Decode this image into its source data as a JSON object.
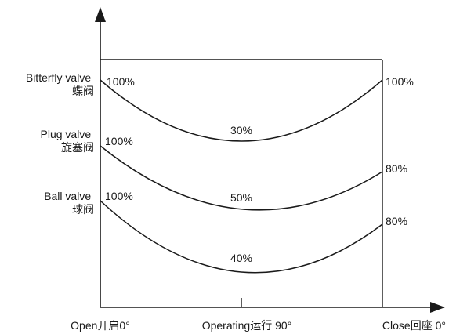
{
  "chart_data": {
    "type": "line",
    "x_labels": [
      "Open开启0°",
      "Operating运行 90°",
      "Close回座 0°"
    ],
    "series": [
      {
        "name_lines": [
          "Bitterfly valve",
          "蝶阀"
        ],
        "start_label": "100%",
        "mid_label": "30%",
        "end_label": "100%",
        "values": [
          100,
          30,
          100
        ]
      },
      {
        "name_lines": [
          "Plug valve",
          "旋塞阀"
        ],
        "start_label": "100%",
        "mid_label": "50%",
        "end_label": "80%",
        "values": [
          100,
          50,
          80
        ]
      },
      {
        "name_lines": [
          "Ball valve",
          "球阀"
        ],
        "start_label": "100%",
        "mid_label": "40%",
        "end_label": "80%",
        "values": [
          100,
          40,
          80
        ]
      }
    ],
    "line_color": "#1a1a1a"
  }
}
